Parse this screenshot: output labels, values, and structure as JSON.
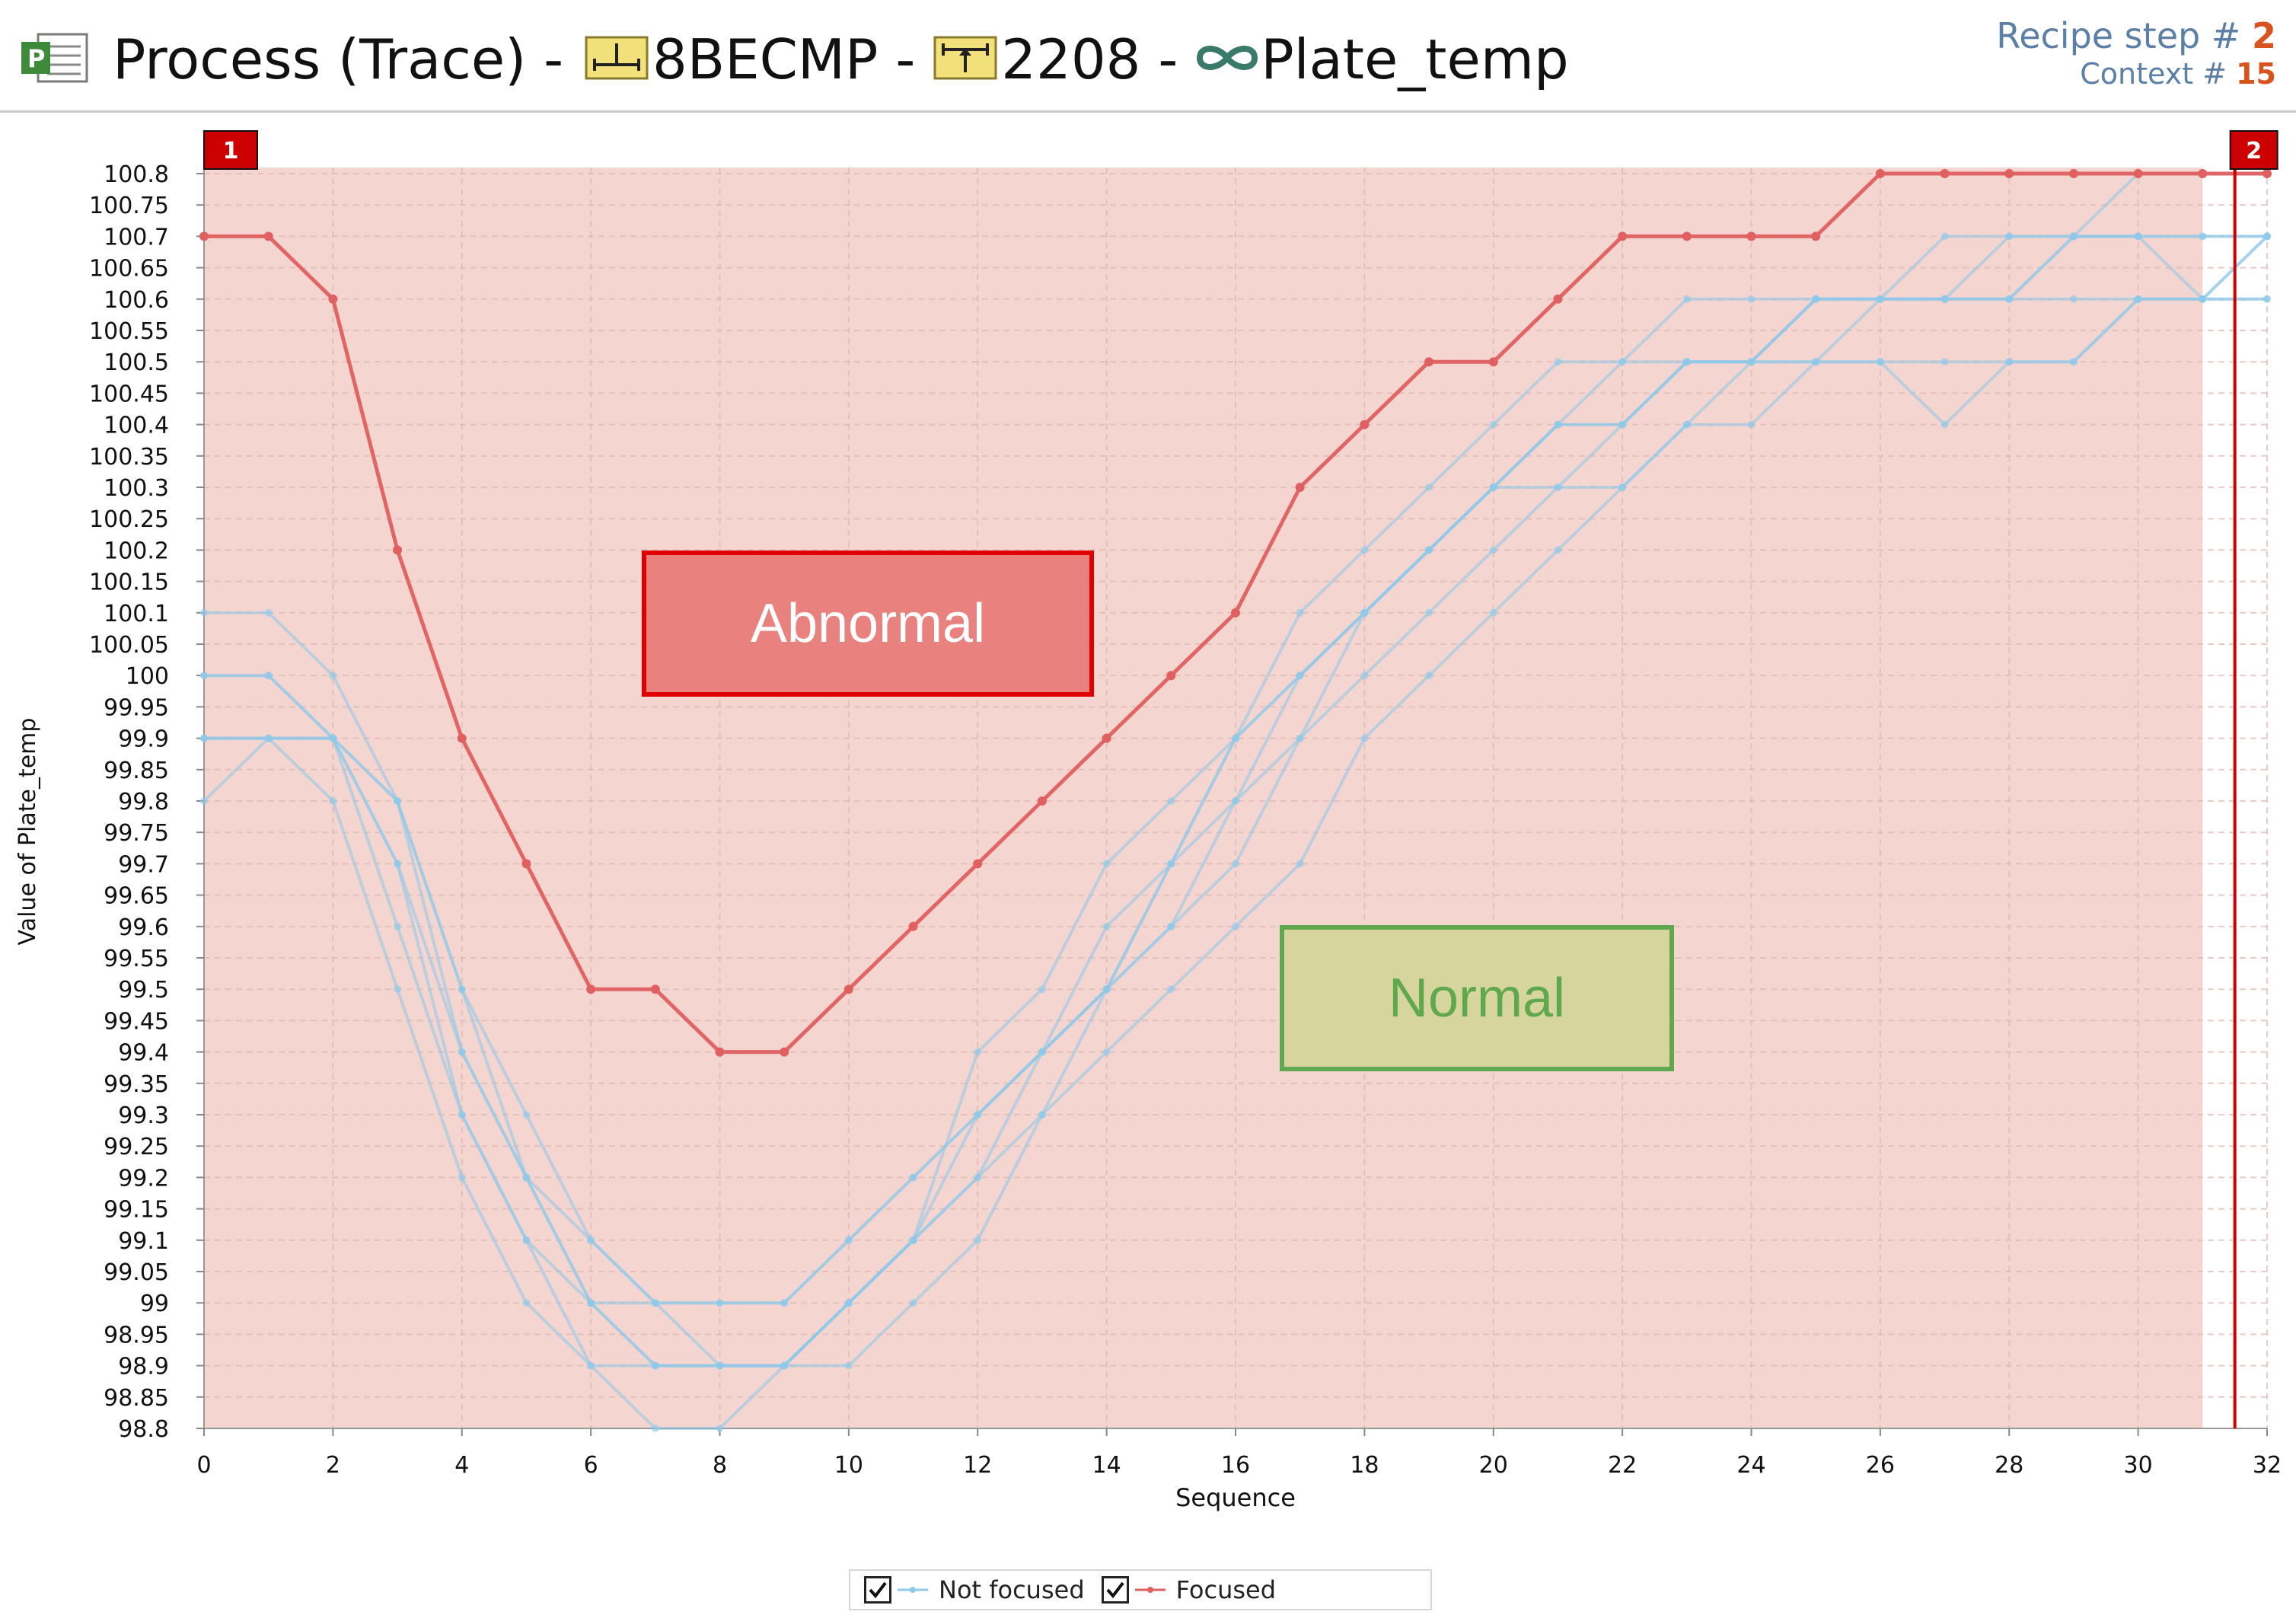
{
  "header": {
    "app_icon": "process-app-icon",
    "title": "Process (Trace) - ",
    "recipe_icon": "recipe-icon",
    "recipe": "8BECMP",
    "sep1": " - ",
    "step_icon": "step-icon",
    "step": "2208",
    "sep2": " - ",
    "param_icon": "parameter-link-icon",
    "parameter": "Plate_temp",
    "recipe_step_label": "Recipe step # ",
    "recipe_step_value": "2",
    "context_label": "Context # ",
    "context_value": "15"
  },
  "colors": {
    "focused": "#e05f5f",
    "not_focused": "#8ec9ea",
    "region": "#f4d5d0",
    "marker": "#cc0000",
    "abnormal_fill": "#e9827e",
    "normal_fill": "#d6d59e",
    "normal_text": "#5fa84d"
  },
  "annotations": {
    "abnormal": "Abnormal",
    "normal": "Normal"
  },
  "markers": {
    "start": "1",
    "end": "2"
  },
  "legend": {
    "not_focused": "Not focused",
    "focused": "Focused",
    "not_focused_checked": true,
    "focused_checked": true
  },
  "chart_data": {
    "type": "line",
    "title": "",
    "xlabel": "Sequence",
    "ylabel": "Value of Plate_temp",
    "xlim": [
      0,
      32
    ],
    "ylim": [
      98.8,
      100.8
    ],
    "x_ticks": [
      0,
      2,
      4,
      6,
      8,
      10,
      12,
      14,
      16,
      18,
      20,
      22,
      24,
      26,
      28,
      30,
      32
    ],
    "y_ticks": [
      "98.8",
      "98.85",
      "98.9",
      "98.95",
      "99",
      "99.05",
      "99.1",
      "99.15",
      "99.2",
      "99.25",
      "99.3",
      "99.35",
      "99.4",
      "99.45",
      "99.5",
      "99.55",
      "99.6",
      "99.65",
      "99.7",
      "99.75",
      "99.8",
      "99.85",
      "99.9",
      "99.95",
      "100",
      "100.05",
      "100.1",
      "100.15",
      "100.2",
      "100.25",
      "100.3",
      "100.35",
      "100.4",
      "100.45",
      "100.5",
      "100.55",
      "100.6",
      "100.65",
      "100.7",
      "100.75",
      "100.8"
    ],
    "grid": true,
    "shaded_region_x": [
      0,
      31
    ],
    "marker_lines": [
      {
        "label": "1",
        "x": 0
      },
      {
        "label": "2",
        "x": 31.5
      }
    ],
    "x": [
      0,
      1,
      2,
      3,
      4,
      5,
      6,
      7,
      8,
      9,
      10,
      11,
      12,
      13,
      14,
      15,
      16,
      17,
      18,
      19,
      20,
      21,
      22,
      23,
      24,
      25,
      26,
      27,
      28,
      29,
      30,
      31,
      32
    ],
    "series": [
      {
        "name": "Focused",
        "focused": true,
        "values": [
          100.7,
          100.7,
          100.6,
          100.2,
          99.9,
          99.7,
          99.5,
          99.5,
          99.4,
          99.4,
          99.5,
          99.6,
          99.7,
          99.8,
          99.9,
          100.0,
          100.1,
          100.3,
          100.4,
          100.5,
          100.5,
          100.6,
          100.7,
          100.7,
          100.7,
          100.7,
          100.8,
          100.8,
          100.8,
          100.8,
          100.8,
          100.8,
          100.8
        ]
      },
      {
        "name": "",
        "focused": false,
        "values": [
          99.9,
          99.9,
          99.9,
          99.8,
          99.5,
          99.2,
          99.0,
          98.9,
          98.9,
          98.9,
          99.0,
          99.1,
          99.3,
          99.4,
          99.6,
          99.7,
          99.9,
          100.0,
          100.1,
          100.2,
          100.3,
          100.4,
          100.4,
          100.5,
          100.5,
          100.6,
          100.6,
          100.6,
          100.6,
          100.7,
          100.7,
          100.7,
          100.7
        ]
      },
      {
        "name": "",
        "focused": false,
        "values": [
          100.0,
          100.0,
          99.9,
          99.7,
          99.4,
          99.2,
          99.1,
          99.0,
          99.0,
          99.0,
          99.1,
          99.2,
          99.3,
          99.4,
          99.5,
          99.7,
          99.8,
          100.0,
          100.1,
          100.2,
          100.3,
          100.4,
          100.4,
          100.5,
          100.5,
          100.5,
          100.6,
          100.6,
          100.6,
          100.7,
          100.7,
          100.7,
          100.7
        ]
      },
      {
        "name": "",
        "focused": false,
        "values": [
          99.9,
          99.9,
          99.9,
          99.7,
          99.3,
          99.1,
          98.9,
          98.9,
          98.9,
          98.9,
          99.0,
          99.1,
          99.2,
          99.4,
          99.5,
          99.6,
          99.8,
          99.9,
          100.1,
          100.2,
          100.3,
          100.3,
          100.4,
          100.5,
          100.5,
          100.6,
          100.6,
          100.6,
          100.6,
          100.6,
          100.6,
          100.6,
          100.6
        ]
      },
      {
        "name": "",
        "focused": false,
        "values": [
          100.1,
          100.1,
          100.0,
          99.8,
          99.5,
          99.3,
          99.1,
          99.0,
          98.9,
          98.9,
          99.0,
          99.1,
          99.4,
          99.5,
          99.7,
          99.8,
          99.9,
          100.1,
          100.2,
          100.3,
          100.4,
          100.5,
          100.5,
          100.6,
          100.6,
          100.6,
          100.6,
          100.7,
          100.7,
          100.7,
          100.8,
          100.8,
          100.8
        ]
      },
      {
        "name": "",
        "focused": false,
        "values": [
          99.8,
          99.9,
          99.8,
          99.5,
          99.2,
          99.0,
          98.9,
          98.8,
          98.8,
          98.9,
          98.9,
          99.0,
          99.1,
          99.3,
          99.4,
          99.5,
          99.6,
          99.7,
          99.9,
          100.0,
          100.1,
          100.2,
          100.3,
          100.4,
          100.4,
          100.5,
          100.5,
          100.4,
          100.5,
          100.5,
          100.6,
          100.6,
          100.6
        ]
      },
      {
        "name": "",
        "focused": false,
        "values": [
          99.9,
          99.9,
          99.9,
          99.6,
          99.3,
          99.1,
          99.0,
          98.9,
          98.9,
          98.9,
          99.0,
          99.1,
          99.2,
          99.3,
          99.5,
          99.6,
          99.7,
          99.9,
          100.0,
          100.1,
          100.2,
          100.3,
          100.3,
          100.4,
          100.5,
          100.5,
          100.5,
          100.5,
          100.5,
          100.5,
          100.6,
          100.6,
          100.7
        ]
      },
      {
        "name": "",
        "focused": false,
        "values": [
          100.0,
          100.0,
          99.9,
          99.8,
          99.4,
          99.2,
          99.0,
          99.0,
          99.0,
          99.0,
          99.1,
          99.2,
          99.3,
          99.4,
          99.5,
          99.7,
          99.9,
          100.0,
          100.1,
          100.2,
          100.3,
          100.4,
          100.5,
          100.5,
          100.5,
          100.6,
          100.6,
          100.6,
          100.7,
          100.7,
          100.7,
          100.6,
          100.7
        ]
      }
    ]
  }
}
